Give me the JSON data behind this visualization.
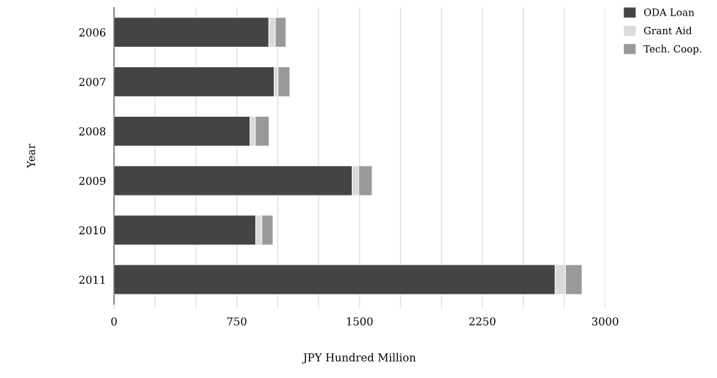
{
  "chart_data": {
    "type": "bar",
    "orientation": "horizontal",
    "stacked": true,
    "xlabel": "JPY Hundred Million",
    "ylabel": "Year",
    "categories": [
      "2006",
      "2007",
      "2008",
      "2009",
      "2010",
      "2011"
    ],
    "series": [
      {
        "name": "ODA Loan",
        "color": "#444444",
        "values": [
          946,
          978,
          831,
          1455,
          866,
          2695
        ]
      },
      {
        "name": "Grant Aid",
        "color": "#dadada",
        "values": [
          39,
          24,
          32,
          40,
          37,
          63
        ]
      },
      {
        "name": "Tech. Coop.",
        "color": "#999999",
        "values": [
          65,
          72,
          84,
          82,
          68,
          101
        ]
      }
    ],
    "xlim": [
      0,
      3000
    ],
    "xticks": [
      0,
      {
        "value": 250,
        "label": null
      },
      {
        "value": 500,
        "label": null
      },
      750,
      {
        "value": 1000,
        "label": null
      },
      {
        "value": 1250,
        "label": null
      },
      1500,
      {
        "value": 1750,
        "label": null
      },
      {
        "value": 2000,
        "label": null
      },
      2250,
      {
        "value": 2500,
        "label": null
      },
      {
        "value": 2750,
        "label": null
      },
      3000
    ],
    "grid": "x",
    "legend": "top right"
  }
}
